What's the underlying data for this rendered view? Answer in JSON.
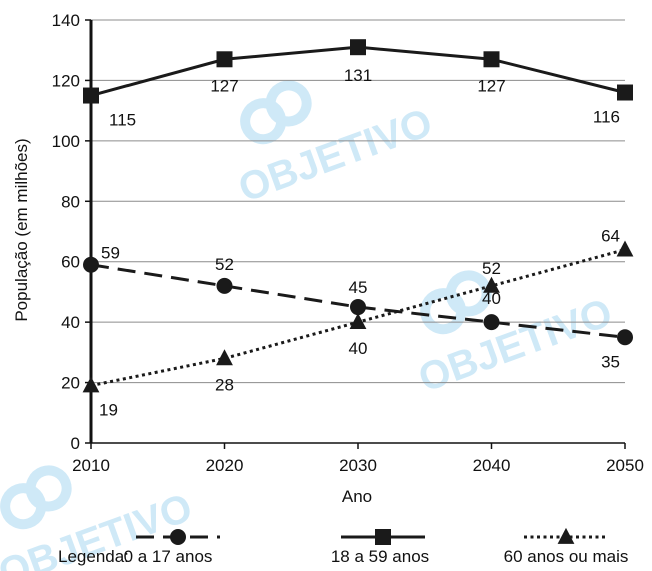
{
  "chart_data": {
    "type": "line",
    "title": "",
    "xlabel": "Ano",
    "ylabel": "População (em milhões)",
    "x": [
      2010,
      2020,
      2030,
      2040,
      2050
    ],
    "xlim": [
      2010,
      2050
    ],
    "ylim": [
      0,
      140
    ],
    "yticks": [
      0,
      20,
      40,
      60,
      80,
      100,
      120,
      140
    ],
    "grid": "horizontal",
    "legend_title": "Legenda:",
    "legend_position": "bottom",
    "series": [
      {
        "name": "0 a 17 anos",
        "values": [
          59,
          52,
          45,
          40,
          35
        ],
        "style": "dashed",
        "marker": "circle",
        "color": "#1a1a1a"
      },
      {
        "name": "18 a 59 anos",
        "values": [
          115,
          127,
          131,
          127,
          116
        ],
        "style": "solid",
        "marker": "square",
        "color": "#1a1a1a"
      },
      {
        "name": "60 anos ou mais",
        "values": [
          19,
          28,
          40,
          52,
          64
        ],
        "style": "dotted",
        "marker": "triangle",
        "color": "#1a1a1a"
      }
    ]
  },
  "watermark": {
    "text": "OBJETIVO",
    "color": "#cfe9f7"
  }
}
